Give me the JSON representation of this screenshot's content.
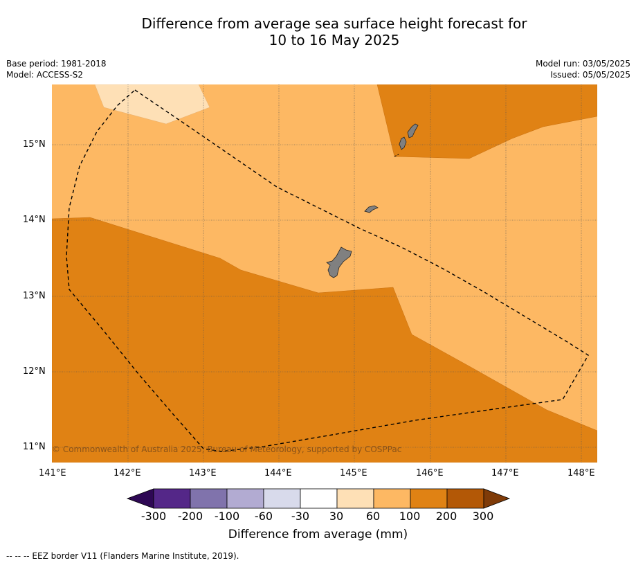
{
  "title_line1": "Difference from average sea surface height forecast for",
  "title_line2": "10 to 16 May 2025",
  "meta_left": {
    "base_period": "Base period: 1981-2018",
    "model": "Model: ACCESS-S2"
  },
  "meta_right": {
    "model_run": "Model run: 03/05/2025",
    "issued": "Issued: 05/05/2025"
  },
  "credit": "© Commonwealth of Australia 2025, Bureau of Meteorology, supported by COSPPac",
  "axes": {
    "x_ticks": [
      "141°E",
      "142°E",
      "143°E",
      "144°E",
      "145°E",
      "146°E",
      "147°E",
      "148°E"
    ],
    "y_ticks": [
      "15°N",
      "14°N",
      "13°N",
      "12°N",
      "11°N"
    ]
  },
  "colorbar": {
    "title": "Difference from average (mm)",
    "labels": [
      "-300",
      "-200",
      "-100",
      "-60",
      "-30",
      "30",
      "60",
      "100",
      "200",
      "300"
    ],
    "colors": [
      "#2e0854",
      "#542788",
      "#8073ac",
      "#b2abd2",
      "#d8daeb",
      "#ffffff",
      "#fee0b6",
      "#fdb863",
      "#e08214",
      "#b35806",
      "#7f3b08"
    ]
  },
  "footer": "--  --  -- EEZ border V11 (Flanders Marine Institute, 2019).",
  "fill_colors": {
    "light": "#fee0b6",
    "mid": "#fdb863",
    "dark": "#e08214"
  }
}
